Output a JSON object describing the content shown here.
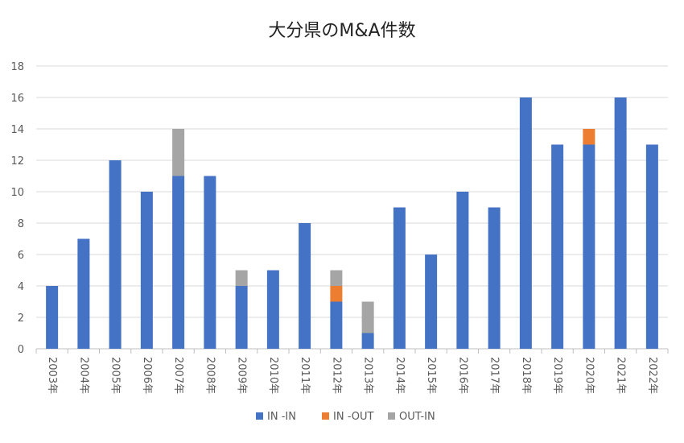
{
  "chart_data": {
    "type": "bar",
    "stacked": true,
    "title": "大分県のM&A件数",
    "xlabel": "",
    "ylabel": "",
    "ylim": [
      0,
      18
    ],
    "yticks": [
      0,
      2,
      4,
      6,
      8,
      10,
      12,
      14,
      16,
      18
    ],
    "grid": true,
    "legend_position": "bottom",
    "categories": [
      "2003年",
      "2004年",
      "2005年",
      "2006年",
      "2007年",
      "2008年",
      "2009年",
      "2010年",
      "2011年",
      "2012年",
      "2013年",
      "2014年",
      "2015年",
      "2016年",
      "2017年",
      "2018年",
      "2019年",
      "2020年",
      "2021年",
      "2022年"
    ],
    "series": [
      {
        "name": "IN -IN",
        "color": "#4472C4",
        "values": [
          4,
          7,
          12,
          10,
          11,
          11,
          4,
          5,
          8,
          3,
          1,
          9,
          6,
          10,
          9,
          16,
          13,
          13,
          16,
          13
        ]
      },
      {
        "name": "IN -OUT",
        "color": "#ED7D31",
        "values": [
          0,
          0,
          0,
          0,
          0,
          0,
          0,
          0,
          0,
          1,
          0,
          0,
          0,
          0,
          0,
          0,
          0,
          1,
          0,
          0
        ]
      },
      {
        "name": "OUT-IN",
        "color": "#A5A5A5",
        "values": [
          0,
          0,
          0,
          0,
          3,
          0,
          1,
          0,
          0,
          1,
          2,
          0,
          0,
          0,
          0,
          0,
          0,
          0,
          0,
          0
        ]
      }
    ]
  }
}
